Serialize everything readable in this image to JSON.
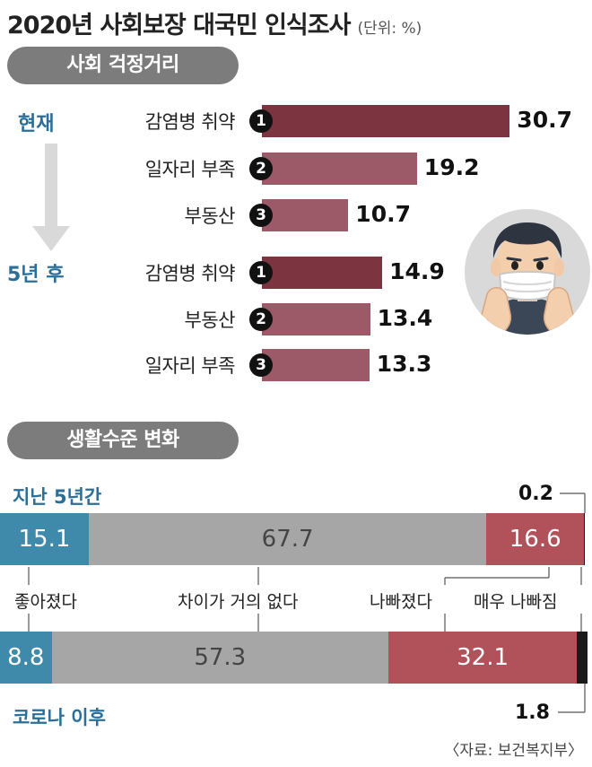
{
  "title": "2020년 사회보장 대국민 인식조사",
  "unit": "(단위: %)",
  "source": "〈자료: 보건복지부〉",
  "colors": {
    "rank1": "#7b3440",
    "rank_other": "#9c5a69",
    "good": "#3f89aa",
    "neutral": "#a6a6a6",
    "bad": "#b1525b",
    "very_bad": "#1a1a1a",
    "pill": "#7c7c7c",
    "period": "#2b6f99"
  },
  "chart_data": [
    {
      "type": "bar",
      "section": "사회 걱정거리",
      "groups": [
        {
          "name": "현재",
          "items": [
            {
              "rank": "1",
              "label": "감염병 취약",
              "value": 30.7
            },
            {
              "rank": "2",
              "label": "일자리 부족",
              "value": 19.2
            },
            {
              "rank": "3",
              "label": "부동산",
              "value": 10.7
            }
          ]
        },
        {
          "name": "5년 후",
          "items": [
            {
              "rank": "1",
              "label": "감염병 취약",
              "value": 14.9
            },
            {
              "rank": "2",
              "label": "부동산",
              "value": 13.4
            },
            {
              "rank": "3",
              "label": "일자리 부족",
              "value": 13.3
            }
          ]
        }
      ]
    },
    {
      "type": "bar",
      "stacked": true,
      "section": "생활수준 변화",
      "categories": [
        "좋아졌다",
        "차이가 거의 없다",
        "나빠졌다",
        "매우 나빠짐"
      ],
      "rows": [
        {
          "name": "지난 5년간",
          "values": [
            15.1,
            67.7,
            16.6,
            0.2
          ]
        },
        {
          "name": "코로나 이후",
          "values": [
            8.8,
            57.3,
            32.1,
            1.8
          ]
        }
      ]
    }
  ]
}
